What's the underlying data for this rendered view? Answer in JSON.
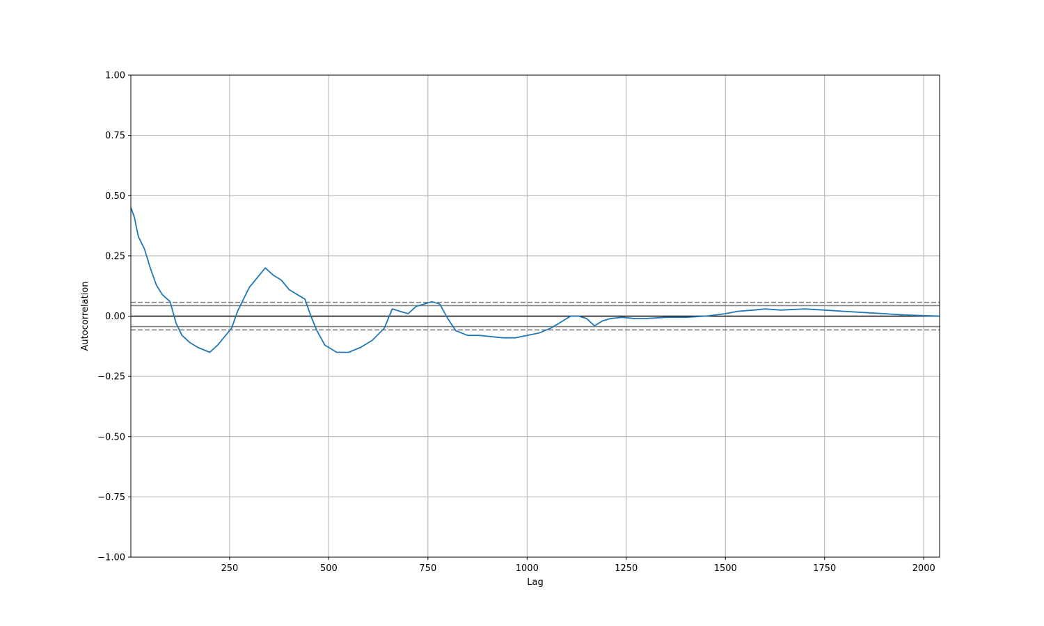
{
  "chart_data": {
    "type": "line",
    "title": "",
    "xlabel": "Lag",
    "ylabel": "Autocorrelation",
    "xlim": [
      1,
      2040
    ],
    "ylim": [
      -1.0,
      1.0
    ],
    "grid": true,
    "x_ticks": [
      250,
      500,
      750,
      1000,
      1250,
      1500,
      1750,
      2000
    ],
    "x_tick_labels": [
      "250",
      "500",
      "750",
      "1000",
      "1250",
      "1500",
      "1750",
      "2000"
    ],
    "y_ticks": [
      -1.0,
      -0.75,
      -0.5,
      -0.25,
      0.0,
      0.25,
      0.5,
      0.75,
      1.0
    ],
    "y_tick_labels": [
      "−1.00",
      "−0.75",
      "−0.50",
      "−0.25",
      "0.00",
      "0.25",
      "0.50",
      "0.75",
      "1.00"
    ],
    "reference_lines": {
      "zero": 0.0,
      "confidence_95": 0.0434,
      "confidence_99": 0.0571
    },
    "colors": {
      "series": "#1f77b4",
      "grid": "#b0b0b0",
      "zero_line": "#000000",
      "confidence_lines": "#808080"
    },
    "series": [
      {
        "x": [
          1,
          10,
          20,
          35,
          50,
          65,
          80,
          100,
          115,
          130,
          150,
          170,
          185,
          200,
          220,
          240,
          255,
          270,
          285,
          300,
          320,
          340,
          360,
          380,
          400,
          420,
          440,
          455,
          470,
          490,
          520,
          550,
          580,
          610,
          640,
          660,
          680,
          700,
          720,
          740,
          760,
          780,
          800,
          820,
          850,
          880,
          910,
          940,
          970,
          1000,
          1030,
          1060,
          1090,
          1110,
          1130,
          1150,
          1170,
          1190,
          1210,
          1240,
          1270,
          1300,
          1350,
          1400,
          1450,
          1500,
          1530,
          1570,
          1600,
          1640,
          1700,
          1750,
          1800,
          1850,
          1900,
          1950,
          2000,
          2040
        ],
        "y": [
          0.45,
          0.41,
          0.33,
          0.28,
          0.2,
          0.13,
          0.09,
          0.06,
          -0.03,
          -0.08,
          -0.11,
          -0.13,
          -0.14,
          -0.15,
          -0.12,
          -0.08,
          -0.05,
          0.02,
          0.07,
          0.12,
          0.16,
          0.2,
          0.17,
          0.15,
          0.11,
          0.09,
          0.07,
          0.0,
          -0.06,
          -0.12,
          -0.15,
          -0.15,
          -0.13,
          -0.1,
          -0.05,
          0.03,
          0.02,
          0.01,
          0.04,
          0.05,
          0.06,
          0.05,
          -0.01,
          -0.06,
          -0.08,
          -0.08,
          -0.085,
          -0.09,
          -0.09,
          -0.08,
          -0.07,
          -0.05,
          -0.02,
          0.0,
          0.0,
          -0.01,
          -0.04,
          -0.02,
          -0.01,
          -0.005,
          -0.01,
          -0.01,
          -0.005,
          -0.005,
          0.0,
          0.01,
          0.02,
          0.025,
          0.03,
          0.025,
          0.03,
          0.025,
          0.02,
          0.015,
          0.01,
          0.005,
          0.002,
          0.0
        ]
      }
    ]
  }
}
